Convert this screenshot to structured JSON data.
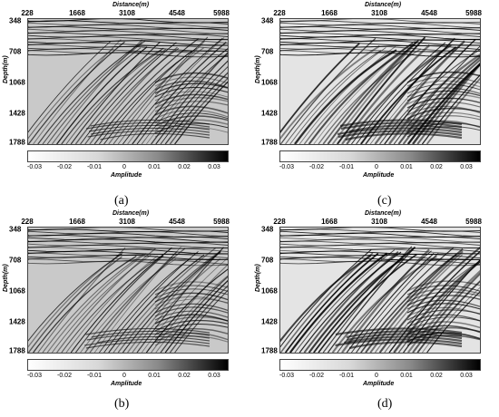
{
  "axes": {
    "xlabel": "Distance(m)",
    "ylabel": "Depth(m)",
    "xticks": [
      "228",
      "1668",
      "3108",
      "4548",
      "5988"
    ],
    "yticks": [
      "348",
      "708",
      "1068",
      "1428",
      "1788"
    ],
    "colorbar_label": "Amplitude",
    "colorbar_ticks": [
      "-0.03",
      "-0.02",
      "-0.01",
      "0",
      "0.01",
      "0.02",
      "0.03"
    ]
  },
  "panels": [
    {
      "caption": "(a)"
    },
    {
      "caption": "(c)"
    },
    {
      "caption": "(b)"
    },
    {
      "caption": "(d)"
    }
  ],
  "colors": {
    "background": "#ffffff",
    "colormap_low": "#ffffff",
    "colormap_high": "#000000"
  },
  "chart_data": [
    {
      "type": "heatmap",
      "xlabel": "Distance(m)",
      "ylabel": "Depth(m)",
      "xlim": [
        228,
        5988
      ],
      "ylim": [
        1788,
        348
      ],
      "colorbar": {
        "label": "Amplitude",
        "range": [
          -0.03,
          0.03
        ]
      }
    },
    {
      "type": "heatmap",
      "xlabel": "Distance(m)",
      "ylabel": "Depth(m)",
      "xlim": [
        228,
        5988
      ],
      "ylim": [
        1788,
        348
      ],
      "colorbar": {
        "label": "Amplitude",
        "range": [
          -0.03,
          0.03
        ]
      }
    },
    {
      "type": "heatmap",
      "xlabel": "Distance(m)",
      "ylabel": "Depth(m)",
      "xlim": [
        228,
        5988
      ],
      "ylim": [
        1788,
        348
      ],
      "colorbar": {
        "label": "Amplitude",
        "range": [
          -0.03,
          0.03
        ]
      }
    },
    {
      "type": "heatmap",
      "xlabel": "Distance(m)",
      "ylabel": "Depth(m)",
      "xlim": [
        228,
        5988
      ],
      "ylim": [
        1788,
        348
      ],
      "colorbar": {
        "label": "Amplitude",
        "range": [
          -0.03,
          0.03
        ]
      }
    }
  ]
}
